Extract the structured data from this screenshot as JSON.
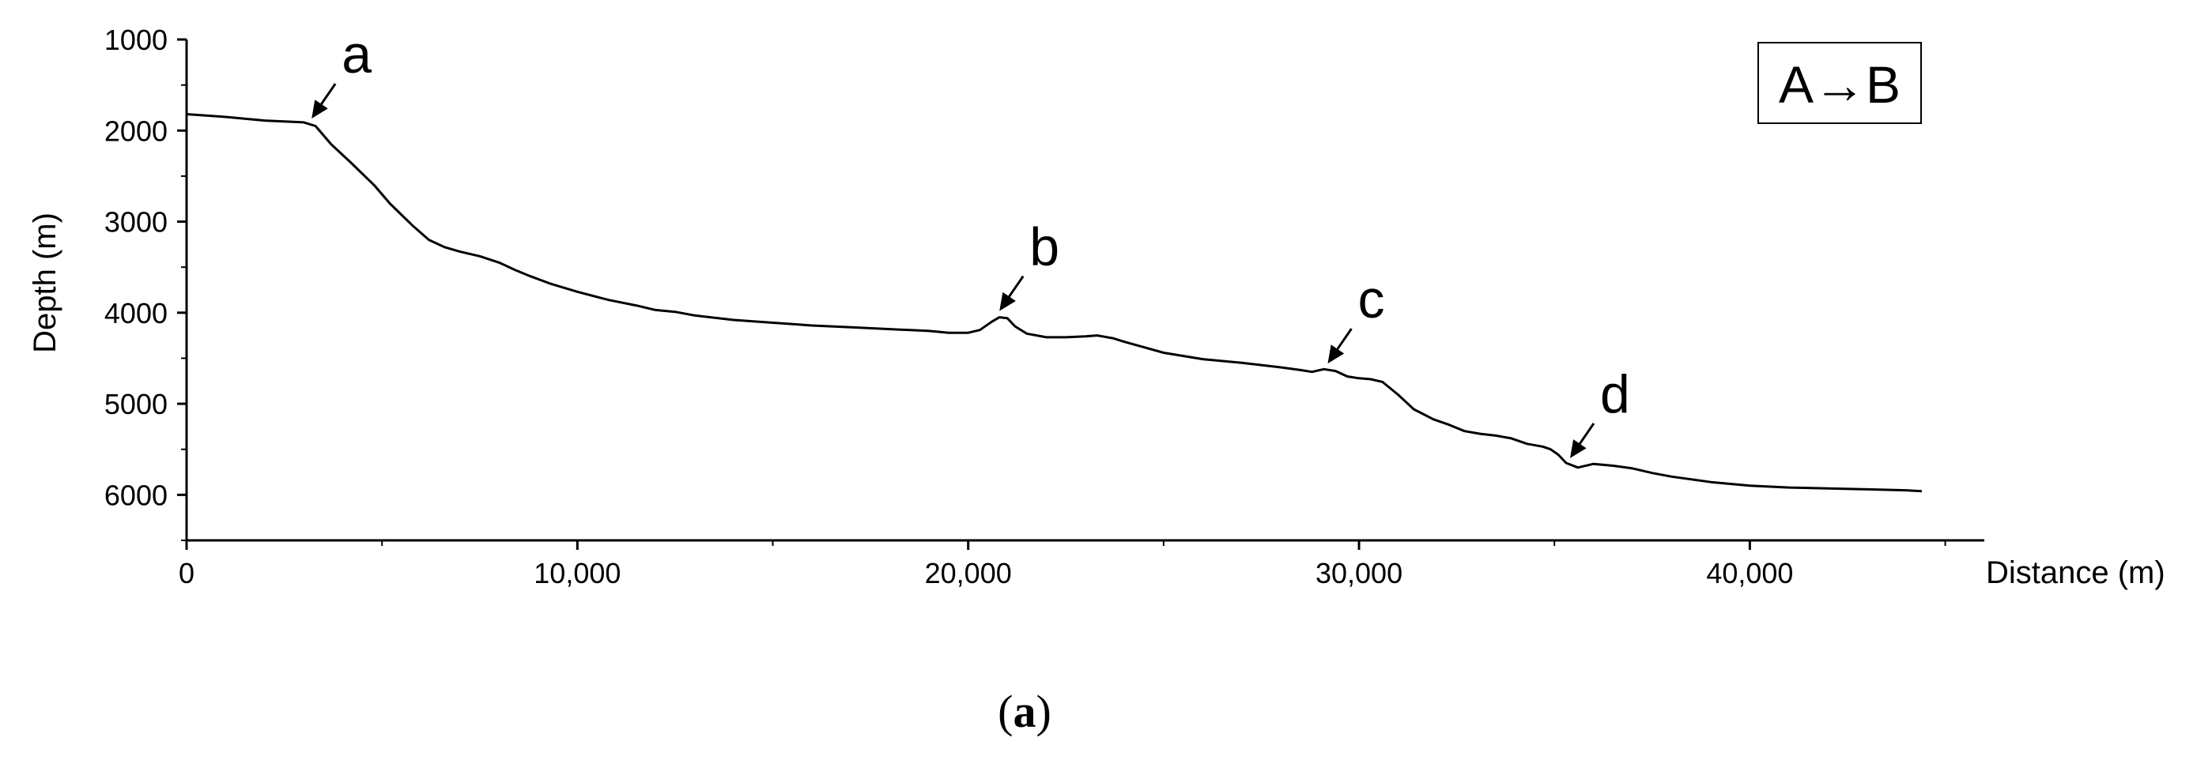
{
  "chart_data": {
    "type": "line",
    "xlabel": "Distance (m)",
    "ylabel": "Depth (m)",
    "xlim": [
      0,
      46000
    ],
    "ylim": [
      1000,
      6500
    ],
    "y_inverted": true,
    "x_ticks": [
      0,
      10000,
      20000,
      30000,
      40000
    ],
    "x_tick_labels": [
      "0",
      "10,000",
      "20,000",
      "30,000",
      "40,000"
    ],
    "y_ticks": [
      1000,
      2000,
      3000,
      4000,
      5000,
      6000
    ],
    "y_tick_labels": [
      "1000",
      "2000",
      "3000",
      "4000",
      "5000",
      "6000"
    ],
    "legend": "A→B",
    "legend_position": "top-right",
    "grid": false,
    "caption_open": "(",
    "caption_letter": "a",
    "caption_close": ")",
    "series": [
      {
        "x": [
          0,
          1000,
          2000,
          3000,
          3300,
          3700,
          4200,
          4800,
          5200,
          5800,
          6200,
          6600,
          7000,
          7500,
          8000,
          8400,
          8800,
          9300,
          10000,
          10800,
          11500,
          12000,
          12500,
          13000,
          14000,
          15000,
          16000,
          17000,
          18000,
          19000,
          19500,
          20000,
          20300,
          20600,
          20800,
          21000,
          21200,
          21500,
          22000,
          22500,
          23000,
          23300,
          23700,
          24000,
          24500,
          25000,
          26000,
          27000,
          28000,
          28500,
          28800,
          29100,
          29400,
          29700,
          30000,
          30300,
          30600,
          31000,
          31400,
          31900,
          32300,
          32700,
          33100,
          33500,
          33900,
          34300,
          34700,
          34900,
          35100,
          35300,
          35600,
          36000,
          36500,
          37000,
          37500,
          38000,
          39000,
          40000,
          41000,
          42000,
          43000,
          44000,
          44400
        ],
        "y": [
          1820,
          1850,
          1890,
          1910,
          1950,
          2150,
          2350,
          2600,
          2800,
          3050,
          3200,
          3280,
          3330,
          3380,
          3450,
          3530,
          3600,
          3680,
          3770,
          3860,
          3920,
          3970,
          3990,
          4030,
          4080,
          4110,
          4140,
          4160,
          4180,
          4200,
          4220,
          4220,
          4190,
          4100,
          4050,
          4060,
          4150,
          4230,
          4270,
          4270,
          4260,
          4250,
          4280,
          4320,
          4380,
          4440,
          4510,
          4550,
          4600,
          4630,
          4650,
          4620,
          4640,
          4700,
          4720,
          4730,
          4760,
          4900,
          5060,
          5170,
          5230,
          5300,
          5330,
          5350,
          5380,
          5440,
          5470,
          5500,
          5560,
          5650,
          5700,
          5660,
          5680,
          5710,
          5760,
          5800,
          5860,
          5900,
          5920,
          5930,
          5940,
          5950,
          5960
        ]
      }
    ],
    "annotations": [
      {
        "label": "a",
        "x": 3200
      },
      {
        "label": "b",
        "x": 20800
      },
      {
        "label": "c",
        "x": 29200
      },
      {
        "label": "d",
        "x": 35400
      }
    ]
  }
}
